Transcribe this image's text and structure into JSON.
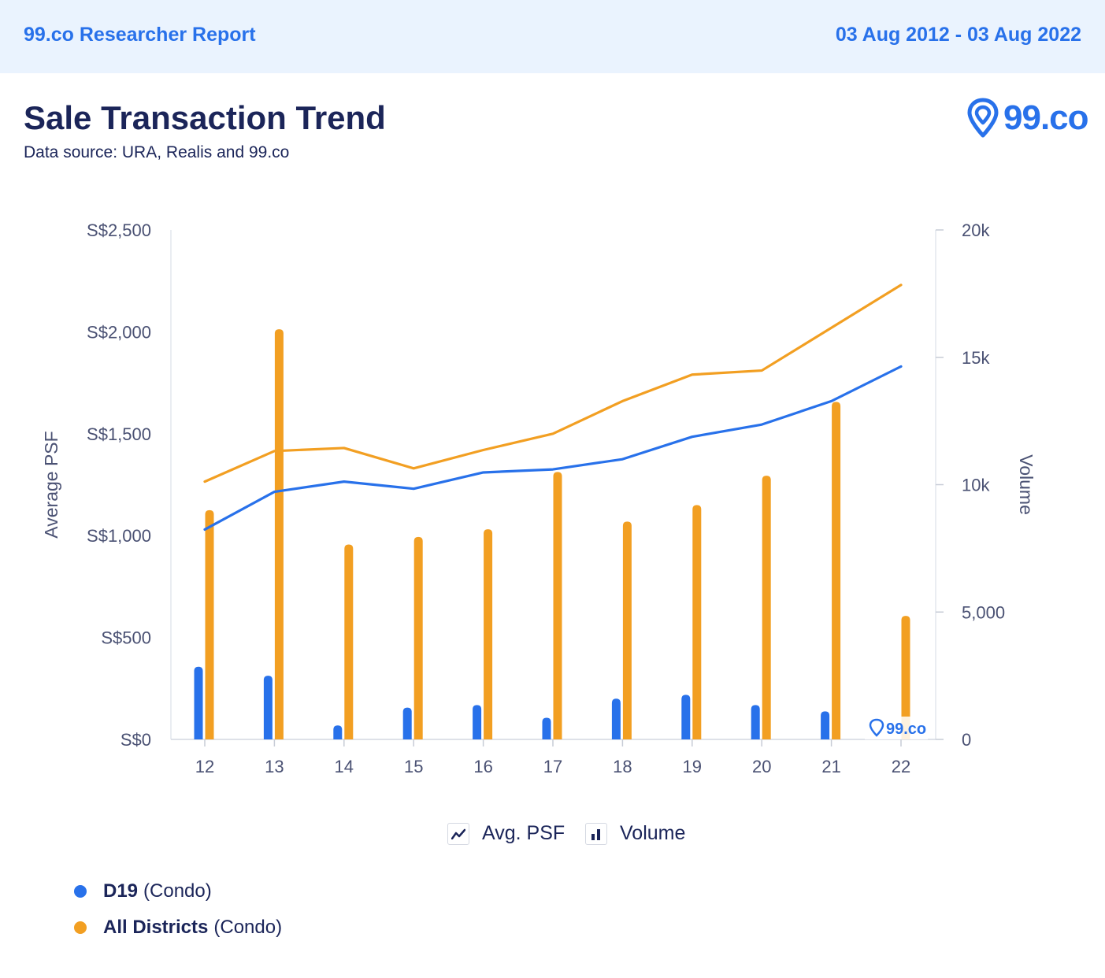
{
  "header": {
    "report_name": "99.co Researcher Report",
    "date_range": "03 Aug 2012 - 03 Aug 2022"
  },
  "title": "Sale Transaction Trend",
  "subtitle": "Data source: URA, Realis and 99.co",
  "brand": {
    "text": "99.co",
    "color": "#2871ea"
  },
  "watermark": {
    "text": "99.co"
  },
  "legend_toggles": [
    {
      "label": "Avg. PSF",
      "icon": "line-chart-icon"
    },
    {
      "label": "Volume",
      "icon": "bar-chart-icon"
    }
  ],
  "series_legend": [
    {
      "name": "D19",
      "suffix": "(Condo)",
      "color": "#2871ea"
    },
    {
      "name": "All Districts",
      "suffix": "(Condo)",
      "color": "#f29f22"
    }
  ],
  "chart_data": {
    "type": "bar",
    "categories": [
      "12",
      "13",
      "14",
      "15",
      "16",
      "17",
      "18",
      "19",
      "20",
      "21",
      "22"
    ],
    "ylabel": "Average PSF",
    "y2label": "Volume",
    "ylim": [
      0,
      2500
    ],
    "y2lim": [
      0,
      20000
    ],
    "yticks": [
      "S$0",
      "S$500",
      "S$1,000",
      "S$1,500",
      "S$2,000",
      "S$2,500"
    ],
    "y2ticks": [
      "0",
      "5,000",
      "10k",
      "15k",
      "20k"
    ],
    "series": [
      {
        "name": "D19",
        "type": "line",
        "axis": "left",
        "color": "#2871ea",
        "values": [
          1030,
          1215,
          1265,
          1230,
          1310,
          1325,
          1375,
          1485,
          1545,
          1660,
          1830
        ]
      },
      {
        "name": "All Districts",
        "type": "line",
        "axis": "left",
        "color": "#f29f22",
        "values": [
          1265,
          1415,
          1430,
          1330,
          1420,
          1500,
          1660,
          1790,
          1810,
          2020,
          2230
        ]
      },
      {
        "name": "D19",
        "type": "bar",
        "axis": "right",
        "color": "#2871ea",
        "values": [
          2850,
          2500,
          550,
          1250,
          1350,
          850,
          1600,
          1750,
          1350,
          1100,
          0
        ]
      },
      {
        "name": "All Districts",
        "type": "bar",
        "axis": "right",
        "color": "#f29f22",
        "values": [
          9000,
          16100,
          7650,
          7950,
          8250,
          10500,
          8550,
          9200,
          10350,
          13250,
          4850
        ]
      }
    ],
    "grid": false,
    "legend": "bottom"
  }
}
